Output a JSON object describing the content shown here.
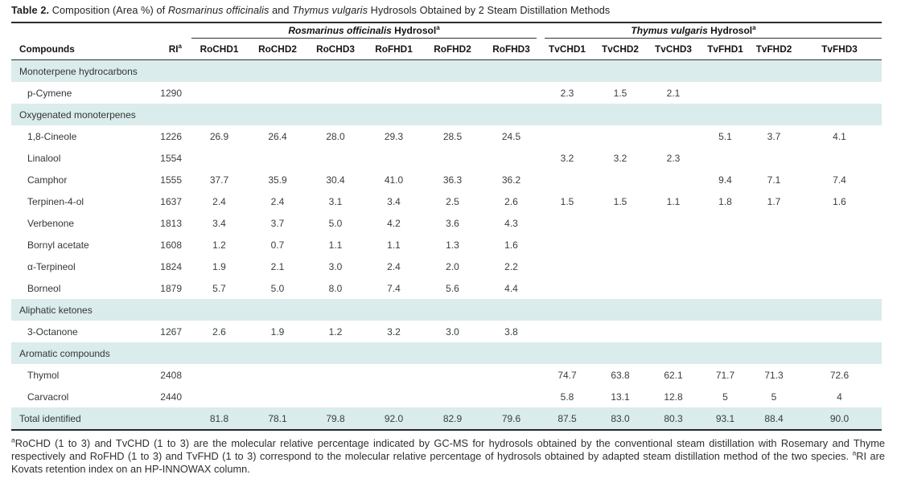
{
  "title": {
    "bold": "Table 2.",
    "seg1": " Composition (Area %) of ",
    "italic1": "Rosmarinus officinalis",
    "seg2": " and ",
    "italic2": "Thymus vulgaris",
    "seg3": " Hydrosols Obtained by 2 Steam Distillation Methods"
  },
  "table": {
    "groups": [
      {
        "italic": "Rosmarinus officinalis",
        "bold": " Hydrosol",
        "sup": "a"
      },
      {
        "italic": "Thymus vulgaris",
        "bold": " Hydrosol",
        "sup": "a"
      }
    ],
    "compounds_header": "Compounds",
    "ri_header": {
      "text": "RI",
      "sup": "a"
    },
    "columns": [
      "RoCHD1",
      "RoCHD2",
      "RoCHD3",
      "RoFHD1",
      "RoFHD2",
      "RoFHD3",
      "TvCHD1",
      "TvCHD2",
      "TvCHD3",
      "TvFHD1",
      "TvFHD2",
      "TvFHD3"
    ],
    "rows": [
      {
        "type": "category",
        "label": "Monoterpene hydrocarbons"
      },
      {
        "type": "compound",
        "name": "p-Cymene",
        "ri": "1290",
        "values": [
          "",
          "",
          "",
          "",
          "",
          "",
          "2.3",
          "1.5",
          "2.1",
          "",
          "",
          ""
        ]
      },
      {
        "type": "category",
        "label": "Oxygenated monoterpenes"
      },
      {
        "type": "compound",
        "name": "1,8-Cineole",
        "ri": "1226",
        "values": [
          "26.9",
          "26.4",
          "28.0",
          "29.3",
          "28.5",
          "24.5",
          "",
          "",
          "",
          "5.1",
          "3.7",
          "4.1"
        ]
      },
      {
        "type": "compound",
        "name": "Linalool",
        "ri": "1554",
        "values": [
          "",
          "",
          "",
          "",
          "",
          "",
          "3.2",
          "3.2",
          "2.3",
          "",
          "",
          ""
        ]
      },
      {
        "type": "compound",
        "name": "Camphor",
        "ri": "1555",
        "values": [
          "37.7",
          "35.9",
          "30.4",
          "41.0",
          "36.3",
          "36.2",
          "",
          "",
          "",
          "9.4",
          "7.1",
          "7.4"
        ]
      },
      {
        "type": "compound",
        "name": "Terpinen-4-ol",
        "ri": "1637",
        "values": [
          "2.4",
          "2.4",
          "3.1",
          "3.4",
          "2.5",
          "2.6",
          "1.5",
          "1.5",
          "1.1",
          "1.8",
          "1.7",
          "1.6"
        ]
      },
      {
        "type": "compound",
        "name": "Verbenone",
        "ri": "1813",
        "values": [
          "3.4",
          "3.7",
          "5.0",
          "4.2",
          "3.6",
          "4.3",
          "",
          "",
          "",
          "",
          "",
          ""
        ]
      },
      {
        "type": "compound",
        "name": "Bornyl acetate",
        "ri": "1608",
        "values": [
          "1.2",
          "0.7",
          "1.1",
          "1.1",
          "1.3",
          "1.6",
          "",
          "",
          "",
          "",
          "",
          ""
        ]
      },
      {
        "type": "compound",
        "name": "α-Terpineol",
        "ri": "1824",
        "values": [
          "1.9",
          "2.1",
          "3.0",
          "2.4",
          "2.0",
          "2.2",
          "",
          "",
          "",
          "",
          "",
          ""
        ]
      },
      {
        "type": "compound",
        "name": "Borneol",
        "ri": "1879",
        "values": [
          "5.7",
          "5.0",
          "8.0",
          "7.4",
          "5.6",
          "4.4",
          "",
          "",
          "",
          "",
          "",
          ""
        ]
      },
      {
        "type": "category",
        "label": "Aliphatic ketones"
      },
      {
        "type": "compound",
        "name": "3-Octanone",
        "ri": "1267",
        "values": [
          "2.6",
          "1.9",
          "1.2",
          "3.2",
          "3.0",
          "3.8",
          "",
          "",
          "",
          "",
          "",
          ""
        ]
      },
      {
        "type": "category",
        "label": "Aromatic compounds"
      },
      {
        "type": "compound",
        "name": "Thymol",
        "ri": "2408",
        "values": [
          "",
          "",
          "",
          "",
          "",
          "",
          "74.7",
          "63.8",
          "62.1",
          "71.7",
          "71.3",
          "72.6"
        ]
      },
      {
        "type": "compound",
        "name": "Carvacrol",
        "ri": "2440",
        "values": [
          "",
          "",
          "",
          "",
          "",
          "",
          "5.8",
          "13.1",
          "12.8",
          "5",
          "5",
          "4"
        ]
      },
      {
        "type": "total",
        "name": "Total identified",
        "ri": "",
        "values": [
          "81.8",
          "78.1",
          "79.8",
          "92.0",
          "82.9",
          "79.6",
          "87.5",
          "83.0",
          "80.3",
          "93.1",
          "88.4",
          "90.0"
        ]
      }
    ]
  },
  "footnote": {
    "sup1": "a",
    "text1": "RoCHD (1 to 3) and TvCHD (1 to 3) are the molecular relative percentage indicated by GC-MS for hydrosols obtained by the conventional steam distillation with Rosemary and Thyme respectively and RoFHD (1 to 3) and TvFHD (1 to 3) correspond to the molecular relative percentage of hydrosols obtained by adapted steam distillation method of the two species. ",
    "sup2": "a",
    "text2": "RI are Kovats retention index on an HP-INNOWAX column."
  }
}
